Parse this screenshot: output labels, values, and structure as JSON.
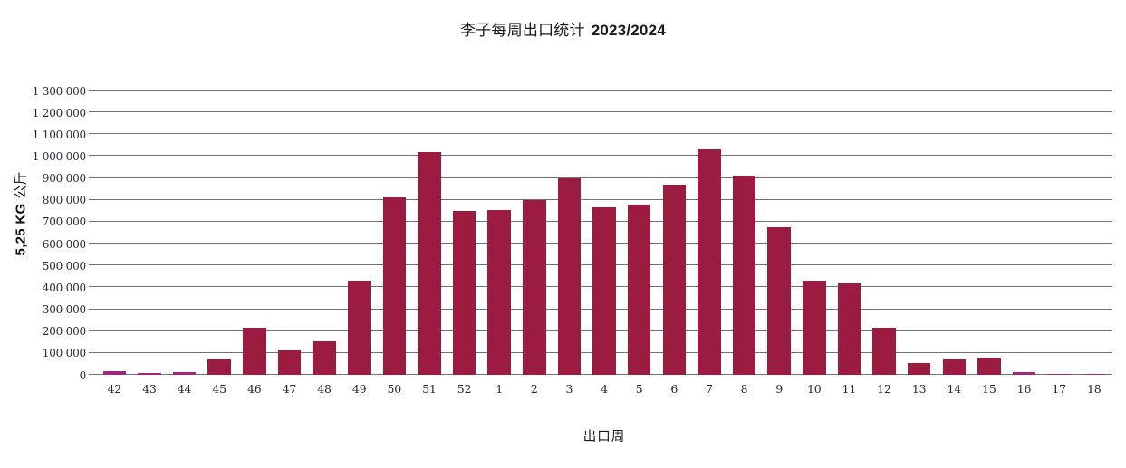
{
  "title": {
    "main": "李子每周出口统计",
    "season": "2023/2024"
  },
  "y_axis_title": {
    "unit": "5,25 KG",
    "cjk": "公斤"
  },
  "x_axis_title": "出口周",
  "chart_data": {
    "type": "bar",
    "title": "李子每周出口统计 2023/2024",
    "xlabel": "出口周",
    "ylabel": "5,25 KG 公斤",
    "ylim": [
      0,
      1300000
    ],
    "ytick_step": 100000,
    "ytick_format": "space-separated thousands",
    "grid": true,
    "legend": "none",
    "categories": [
      "42",
      "43",
      "44",
      "45",
      "46",
      "47",
      "48",
      "49",
      "50",
      "51",
      "52",
      "1",
      "2",
      "3",
      "4",
      "5",
      "6",
      "7",
      "8",
      "9",
      "10",
      "11",
      "12",
      "13",
      "14",
      "15",
      "16",
      "17",
      "18"
    ],
    "values": [
      15000,
      10000,
      12000,
      72000,
      215000,
      112000,
      152000,
      430000,
      810000,
      1020000,
      750000,
      755000,
      800000,
      900000,
      765000,
      780000,
      870000,
      1030000,
      910000,
      675000,
      430000,
      420000,
      215000,
      55000,
      70000,
      80000,
      12000,
      3000,
      3000
    ],
    "bar_colors": [
      "#a1267e",
      "#a1267e",
      "#a1267e",
      "#9b1b41",
      "#9b1b41",
      "#9b1b41",
      "#9b1b41",
      "#9b1b41",
      "#9b1b41",
      "#9b1b41",
      "#9b1b41",
      "#9b1b41",
      "#9b1b41",
      "#9b1b41",
      "#9b1b41",
      "#9b1b41",
      "#9b1b41",
      "#9b1b41",
      "#9b1b41",
      "#9b1b41",
      "#9b1b41",
      "#9b1b41",
      "#9b1b41",
      "#9b1b41",
      "#9b1b41",
      "#9b1b41",
      "#a1267e",
      "#a1267e",
      "#a1267e"
    ],
    "colors": {
      "bar_primary": "#9b1b41",
      "bar_secondary": "#a1267e",
      "gridline": "#757575",
      "tick_text": "#26263a",
      "title_text": "#1a1a1a"
    }
  }
}
